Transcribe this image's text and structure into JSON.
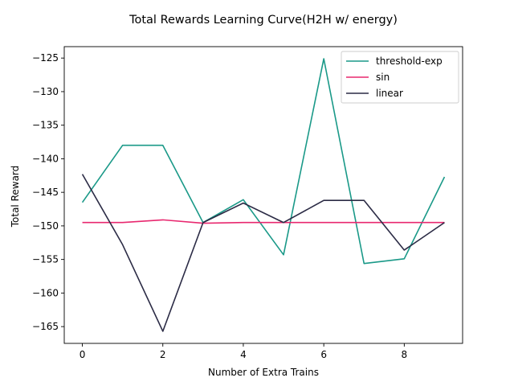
{
  "chart_data": {
    "type": "line",
    "title": "Total Rewards Learning Curve(H2H w/ energy)",
    "xlabel": "Number of Extra Trains",
    "ylabel": "Total Reward",
    "xlim": [
      -0.45,
      9.45
    ],
    "ylim": [
      -167.5,
      -123.3
    ],
    "xticks": [
      0,
      2,
      4,
      6,
      8
    ],
    "yticks": [
      -125,
      -130,
      -135,
      -140,
      -145,
      -150,
      -155,
      -160,
      -165
    ],
    "ytick_labels": [
      "−125",
      "−130",
      "−135",
      "−140",
      "−145",
      "−150",
      "−155",
      "−160",
      "−165"
    ],
    "legend_position": "top-right",
    "x": [
      0,
      1,
      2,
      3,
      4,
      5,
      6,
      7,
      8,
      9
    ],
    "series": [
      {
        "name": "threshold-exp",
        "color": "#1a9988",
        "values": [
          -146.5,
          -138.0,
          -138.0,
          -149.5,
          -146.1,
          -154.3,
          -125.1,
          -155.6,
          -154.9,
          -142.7
        ]
      },
      {
        "name": "sin",
        "color": "#e8286f",
        "values": [
          -149.5,
          -149.5,
          -149.1,
          -149.6,
          -149.5,
          -149.5,
          -149.5,
          -149.5,
          -149.5,
          -149.5
        ]
      },
      {
        "name": "linear",
        "color": "#2b2b45",
        "values": [
          -142.3,
          -152.8,
          -165.7,
          -149.5,
          -146.6,
          -149.5,
          -146.2,
          -146.2,
          -153.6,
          -149.5
        ]
      }
    ]
  }
}
